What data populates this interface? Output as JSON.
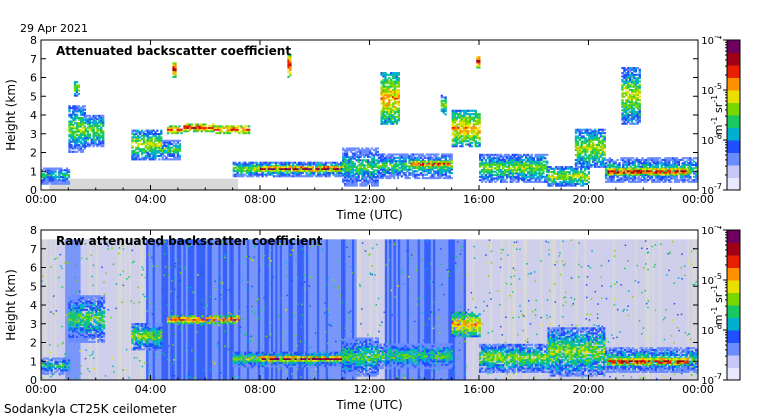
{
  "header": {
    "date": "29 Apr 2021"
  },
  "footer": {
    "instrument": "Sodankyla CT25K ceilometer"
  },
  "colors": {
    "colormap": [
      "#e8e8ff",
      "#c8c8f8",
      "#6a8cff",
      "#1f4fff",
      "#00b0d0",
      "#18c860",
      "#7ad800",
      "#e8e000",
      "#ff9000",
      "#e82000",
      "#a00018",
      "#700060"
    ],
    "no_signal": "#d8d8d8"
  },
  "chart_data": [
    {
      "type": "heatmap",
      "title": "Attenuated backscatter coefficient",
      "xlabel": "Time (UTC)",
      "ylabel": "Height (km)",
      "x_ticks": [
        "00:00",
        "04:00",
        "08:00",
        "12:00",
        "16:00",
        "20:00",
        "00:00"
      ],
      "xlim": [
        0,
        24
      ],
      "y_ticks": [
        "0",
        "1",
        "2",
        "3",
        "4",
        "5",
        "6",
        "7",
        "8"
      ],
      "ylim": [
        0,
        8
      ],
      "colorbar": {
        "scale": "log",
        "ticks": [
          "10^-7",
          "10^-6",
          "10^-5",
          "10^-4"
        ],
        "range": [
          1e-07,
          0.0001
        ],
        "unit": "m^-1 sr^-1"
      },
      "layers": [
        {
          "t0": 0.0,
          "t1": 1.0,
          "h0": 0.3,
          "h1": 1.2,
          "level": 0.45
        },
        {
          "t0": 1.0,
          "t1": 1.6,
          "h0": 2.0,
          "h1": 4.5,
          "level": 0.55
        },
        {
          "t0": 1.2,
          "t1": 1.4,
          "h0": 5.0,
          "h1": 5.8,
          "level": 0.6
        },
        {
          "t0": 1.6,
          "t1": 2.3,
          "h0": 2.3,
          "h1": 4.0,
          "level": 0.55
        },
        {
          "t0": 3.3,
          "t1": 4.4,
          "h0": 1.6,
          "h1": 3.2,
          "level": 0.6
        },
        {
          "t0": 4.4,
          "t1": 5.1,
          "h0": 1.6,
          "h1": 2.6,
          "level": 0.5
        },
        {
          "t0": 4.6,
          "t1": 5.1,
          "h0": 3.0,
          "h1": 3.4,
          "level": 0.8
        },
        {
          "t0": 5.2,
          "t1": 6.3,
          "h0": 3.1,
          "h1": 3.5,
          "level": 0.85
        },
        {
          "t0": 6.3,
          "t1": 7.6,
          "h0": 3.0,
          "h1": 3.4,
          "level": 0.8
        },
        {
          "t0": 4.8,
          "t1": 4.9,
          "h0": 6.0,
          "h1": 6.8,
          "level": 0.85
        },
        {
          "t0": 7.0,
          "t1": 11.4,
          "h0": 0.7,
          "h1": 1.5,
          "level": 0.55
        },
        {
          "t0": 8.0,
          "t1": 11.0,
          "h0": 1.0,
          "h1": 1.2,
          "level": 0.95
        },
        {
          "t0": 9.0,
          "t1": 9.1,
          "h0": 6.0,
          "h1": 7.2,
          "level": 0.85
        },
        {
          "t0": 11.0,
          "t1": 12.3,
          "h0": 0.2,
          "h1": 2.2,
          "level": 0.5
        },
        {
          "t0": 12.4,
          "t1": 13.1,
          "h0": 3.5,
          "h1": 6.2,
          "level": 0.7
        },
        {
          "t0": 12.3,
          "t1": 15.0,
          "h0": 0.6,
          "h1": 1.9,
          "level": 0.5
        },
        {
          "t0": 13.5,
          "t1": 15.0,
          "h0": 1.2,
          "h1": 1.5,
          "level": 0.85
        },
        {
          "t0": 14.6,
          "t1": 14.8,
          "h0": 4.0,
          "h1": 5.0,
          "level": 0.6
        },
        {
          "t0": 15.0,
          "t1": 16.0,
          "h0": 2.3,
          "h1": 4.2,
          "level": 0.7
        },
        {
          "t0": 15.9,
          "t1": 16.0,
          "h0": 6.5,
          "h1": 7.2,
          "level": 0.85
        },
        {
          "t0": 16.0,
          "t1": 18.5,
          "h0": 0.4,
          "h1": 1.9,
          "level": 0.55
        },
        {
          "t0": 18.5,
          "t1": 20.0,
          "h0": 0.2,
          "h1": 1.2,
          "level": 0.6
        },
        {
          "t0": 19.5,
          "t1": 20.6,
          "h0": 1.2,
          "h1": 3.2,
          "level": 0.6
        },
        {
          "t0": 20.6,
          "t1": 24.0,
          "h0": 0.4,
          "h1": 1.7,
          "level": 0.5
        },
        {
          "t0": 20.7,
          "t1": 23.6,
          "h0": 0.8,
          "h1": 1.1,
          "level": 0.9
        },
        {
          "t0": 21.2,
          "t1": 21.9,
          "h0": 3.5,
          "h1": 6.5,
          "level": 0.6
        }
      ]
    },
    {
      "type": "heatmap",
      "title": "Raw attenuated backscatter coefficient",
      "xlabel": "Time (UTC)",
      "ylabel": "Height (km)",
      "x_ticks": [
        "00:00",
        "04:00",
        "08:00",
        "12:00",
        "16:00",
        "20:00",
        "00:00"
      ],
      "xlim": [
        0,
        24
      ],
      "y_ticks": [
        "0",
        "1",
        "2",
        "3",
        "4",
        "5",
        "6",
        "7",
        "8"
      ],
      "ylim": [
        0,
        8
      ],
      "colorbar": {
        "scale": "log",
        "ticks": [
          "10^-7",
          "10^-6",
          "10^-5",
          "10^-4"
        ],
        "range": [
          1e-07,
          0.0001
        ],
        "unit": "m^-1 sr^-1"
      },
      "noise_max_height": 7.5,
      "layers": [
        {
          "t0": 0.0,
          "t1": 1.0,
          "h0": 0.3,
          "h1": 1.2,
          "level": 0.45
        },
        {
          "t0": 1.0,
          "t1": 2.3,
          "h0": 2.0,
          "h1": 4.5,
          "level": 0.5
        },
        {
          "t0": 3.3,
          "t1": 4.4,
          "h0": 1.6,
          "h1": 3.0,
          "level": 0.55
        },
        {
          "t0": 4.6,
          "t1": 7.2,
          "h0": 3.0,
          "h1": 3.4,
          "level": 0.8
        },
        {
          "t0": 7.0,
          "t1": 11.4,
          "h0": 0.7,
          "h1": 1.5,
          "level": 0.55
        },
        {
          "t0": 8.0,
          "t1": 11.0,
          "h0": 1.0,
          "h1": 1.2,
          "level": 0.95
        },
        {
          "t0": 11.0,
          "t1": 12.3,
          "h0": 0.2,
          "h1": 2.2,
          "level": 0.5
        },
        {
          "t0": 12.3,
          "t1": 15.0,
          "h0": 0.6,
          "h1": 1.9,
          "level": 0.5
        },
        {
          "t0": 15.0,
          "t1": 16.0,
          "h0": 2.3,
          "h1": 3.6,
          "level": 0.7
        },
        {
          "t0": 16.0,
          "t1": 18.5,
          "h0": 0.4,
          "h1": 1.9,
          "level": 0.55
        },
        {
          "t0": 18.5,
          "t1": 20.6,
          "h0": 0.2,
          "h1": 2.8,
          "level": 0.55
        },
        {
          "t0": 20.6,
          "t1": 24.0,
          "h0": 0.4,
          "h1": 1.7,
          "level": 0.5
        },
        {
          "t0": 20.7,
          "t1": 23.6,
          "h0": 0.8,
          "h1": 1.1,
          "level": 0.9
        }
      ]
    }
  ]
}
